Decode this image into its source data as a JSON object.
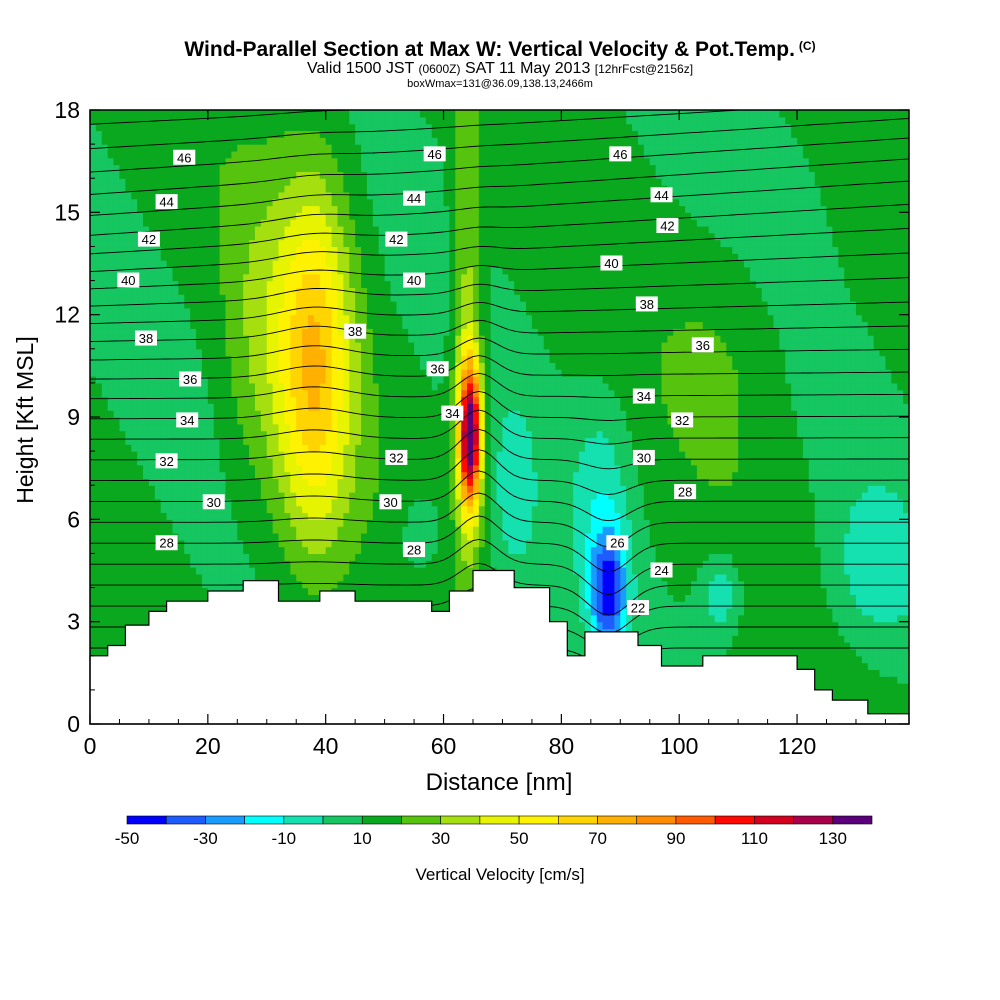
{
  "header": {
    "title": "Wind-Parallel Section at Max W: Vertical Velocity & Pot.Temp.",
    "copyright_mark": "(C)",
    "valid_prefix": "Valid 1500 JST",
    "valid_utc": "(0600Z)",
    "valid_date": "SAT 11 May 2013",
    "forecast_info": "[12hrFcst@2156z]",
    "box_info": "boxWmax=131@36.09,138.13,2466m"
  },
  "colorbar": {
    "levels": [
      -50,
      -40,
      -30,
      -20,
      -10,
      0,
      10,
      20,
      30,
      40,
      50,
      60,
      70,
      80,
      90,
      100,
      110,
      120,
      130,
      140
    ],
    "colors": [
      "#0000ff",
      "#1f5cff",
      "#1a9cff",
      "#00ffff",
      "#14e0b0",
      "#15c661",
      "#0aa81e",
      "#56c40f",
      "#a6df10",
      "#e6f400",
      "#fff200",
      "#ffd400",
      "#ffb000",
      "#ff8c00",
      "#ff5a00",
      "#ff0a00",
      "#d40020",
      "#a8004a",
      "#5a007a"
    ],
    "tick_labels": [
      "-50",
      "-30",
      "-10",
      "10",
      "30",
      "50",
      "70",
      "90",
      "110",
      "130"
    ],
    "tick_values": [
      -50,
      -30,
      -10,
      10,
      30,
      50,
      70,
      90,
      110,
      130
    ],
    "label": "Vertical Velocity [cm/s]"
  },
  "chart_data": {
    "type": "heatmap",
    "title": "Wind-Parallel Section at Max W: Vertical Velocity & Pot.Temp.",
    "xlabel": "Distance [nm]",
    "ylabel": "Height [Kft MSL]",
    "xlim": [
      0,
      139
    ],
    "ylim": [
      0,
      18
    ],
    "x_ticks": [
      0,
      20,
      40,
      60,
      80,
      100,
      120
    ],
    "y_ticks": [
      0,
      3,
      6,
      9,
      12,
      15,
      18
    ],
    "w_field": {
      "units": "cm/s",
      "background": 12,
      "features": [
        {
          "name": "broad updraft",
          "x": 38,
          "y": 10.5,
          "sx": 6.5,
          "sy": 5.5,
          "amp": 55
        },
        {
          "name": "updraft left flank",
          "x": 28,
          "y": 11,
          "sx": 6,
          "sy": 5,
          "amp": 14
        },
        {
          "name": "max updraft core",
          "x": 64.5,
          "y": 8.5,
          "sx": 1.9,
          "sy": 2.1,
          "amp": 118
        },
        {
          "name": "updraft column",
          "x": 64,
          "y": 11,
          "sx": 2.4,
          "sy": 7,
          "amp": 26
        },
        {
          "name": "downdraft core",
          "x": 88,
          "y": 3.8,
          "sx": 3,
          "sy": 1.7,
          "amp": -48
        },
        {
          "name": "downdraft column",
          "x": 87,
          "y": 6.5,
          "sx": 5,
          "sy": 3.2,
          "amp": -17
        },
        {
          "name": "sinking zone",
          "x": 72,
          "y": 6.5,
          "sx": 4,
          "sy": 3,
          "amp": -14
        },
        {
          "name": "sinking zone lower",
          "x": 56,
          "y": 5.5,
          "sx": 5,
          "sy": 1.6,
          "amp": -11
        },
        {
          "name": "downdraft east",
          "x": 107,
          "y": 3.8,
          "sx": 3.5,
          "sy": 1.2,
          "amp": -22
        },
        {
          "name": "downdraft far east",
          "x": 133,
          "y": 4.5,
          "sx": 8,
          "sy": 2.5,
          "amp": -16
        },
        {
          "name": "upper descent",
          "x": 118,
          "y": 16,
          "sx": 10,
          "sy": 3,
          "amp": -4
        },
        {
          "name": "upper lift east",
          "x": 108,
          "y": 11,
          "sx": 10,
          "sy": 3.5,
          "amp": 8
        }
      ]
    },
    "terrain_kft": [
      [
        0,
        2.0
      ],
      [
        3,
        2.0
      ],
      [
        3,
        2.3
      ],
      [
        6,
        2.3
      ],
      [
        6,
        2.9
      ],
      [
        10,
        2.9
      ],
      [
        10,
        3.3
      ],
      [
        13,
        3.3
      ],
      [
        13,
        3.6
      ],
      [
        20,
        3.6
      ],
      [
        20,
        3.9
      ],
      [
        26,
        3.9
      ],
      [
        26,
        4.2
      ],
      [
        32,
        4.2
      ],
      [
        32,
        3.6
      ],
      [
        39,
        3.6
      ],
      [
        39,
        3.9
      ],
      [
        45,
        3.9
      ],
      [
        45,
        3.6
      ],
      [
        58,
        3.6
      ],
      [
        58,
        3.3
      ],
      [
        61,
        3.3
      ],
      [
        61,
        3.9
      ],
      [
        65,
        3.9
      ],
      [
        65,
        4.5
      ],
      [
        72,
        4.5
      ],
      [
        72,
        4.0
      ],
      [
        78,
        4.0
      ],
      [
        78,
        3.0
      ],
      [
        81,
        3.0
      ],
      [
        81,
        2.0
      ],
      [
        84,
        2.0
      ],
      [
        84,
        2.7
      ],
      [
        93,
        2.7
      ],
      [
        93,
        2.3
      ],
      [
        97,
        2.3
      ],
      [
        97,
        1.7
      ],
      [
        104,
        1.7
      ],
      [
        104,
        2.0
      ],
      [
        120,
        2.0
      ],
      [
        120,
        1.6
      ],
      [
        123,
        1.6
      ],
      [
        123,
        1.0
      ],
      [
        126,
        1.0
      ],
      [
        126,
        0.7
      ],
      [
        132,
        0.7
      ],
      [
        132,
        0.3
      ],
      [
        139,
        0.3
      ]
    ],
    "theta_contours": {
      "units": "deg C",
      "levels": [
        22,
        23,
        24,
        25,
        26,
        27,
        28,
        29,
        30,
        31,
        32,
        33,
        34,
        35,
        36,
        37,
        38,
        39,
        40,
        41,
        42,
        43,
        44,
        45,
        46,
        47,
        48
      ],
      "labels": [
        {
          "text": "46",
          "x": 16,
          "y": 16.6
        },
        {
          "text": "44",
          "x": 13,
          "y": 15.3
        },
        {
          "text": "42",
          "x": 10,
          "y": 14.2
        },
        {
          "text": "40",
          "x": 6.5,
          "y": 13.0
        },
        {
          "text": "38",
          "x": 9.5,
          "y": 11.3
        },
        {
          "text": "36",
          "x": 17,
          "y": 10.1
        },
        {
          "text": "34",
          "x": 16.5,
          "y": 8.9
        },
        {
          "text": "32",
          "x": 13,
          "y": 7.7
        },
        {
          "text": "30",
          "x": 21,
          "y": 6.5
        },
        {
          "text": "28",
          "x": 13,
          "y": 5.3
        },
        {
          "text": "46",
          "x": 58.5,
          "y": 16.7
        },
        {
          "text": "44",
          "x": 55,
          "y": 15.4
        },
        {
          "text": "42",
          "x": 52,
          "y": 14.2
        },
        {
          "text": "40",
          "x": 55,
          "y": 13.0
        },
        {
          "text": "38",
          "x": 45,
          "y": 11.5
        },
        {
          "text": "36",
          "x": 59,
          "y": 10.4
        },
        {
          "text": "34",
          "x": 61.5,
          "y": 9.1
        },
        {
          "text": "32",
          "x": 52,
          "y": 7.8
        },
        {
          "text": "30",
          "x": 51,
          "y": 6.5
        },
        {
          "text": "28",
          "x": 55,
          "y": 5.1
        },
        {
          "text": "46",
          "x": 90,
          "y": 16.7
        },
        {
          "text": "44",
          "x": 97,
          "y": 15.5
        },
        {
          "text": "42",
          "x": 98,
          "y": 14.6
        },
        {
          "text": "40",
          "x": 88.5,
          "y": 13.5
        },
        {
          "text": "38",
          "x": 94.5,
          "y": 12.3
        },
        {
          "text": "36",
          "x": 104,
          "y": 11.1
        },
        {
          "text": "34",
          "x": 94,
          "y": 9.6
        },
        {
          "text": "32",
          "x": 100.5,
          "y": 8.9
        },
        {
          "text": "30",
          "x": 94,
          "y": 7.8
        },
        {
          "text": "28",
          "x": 101,
          "y": 6.8
        },
        {
          "text": "26",
          "x": 89.5,
          "y": 5.3
        },
        {
          "text": "24",
          "x": 97,
          "y": 4.5
        },
        {
          "text": "22",
          "x": 93,
          "y": 3.4
        }
      ]
    }
  }
}
